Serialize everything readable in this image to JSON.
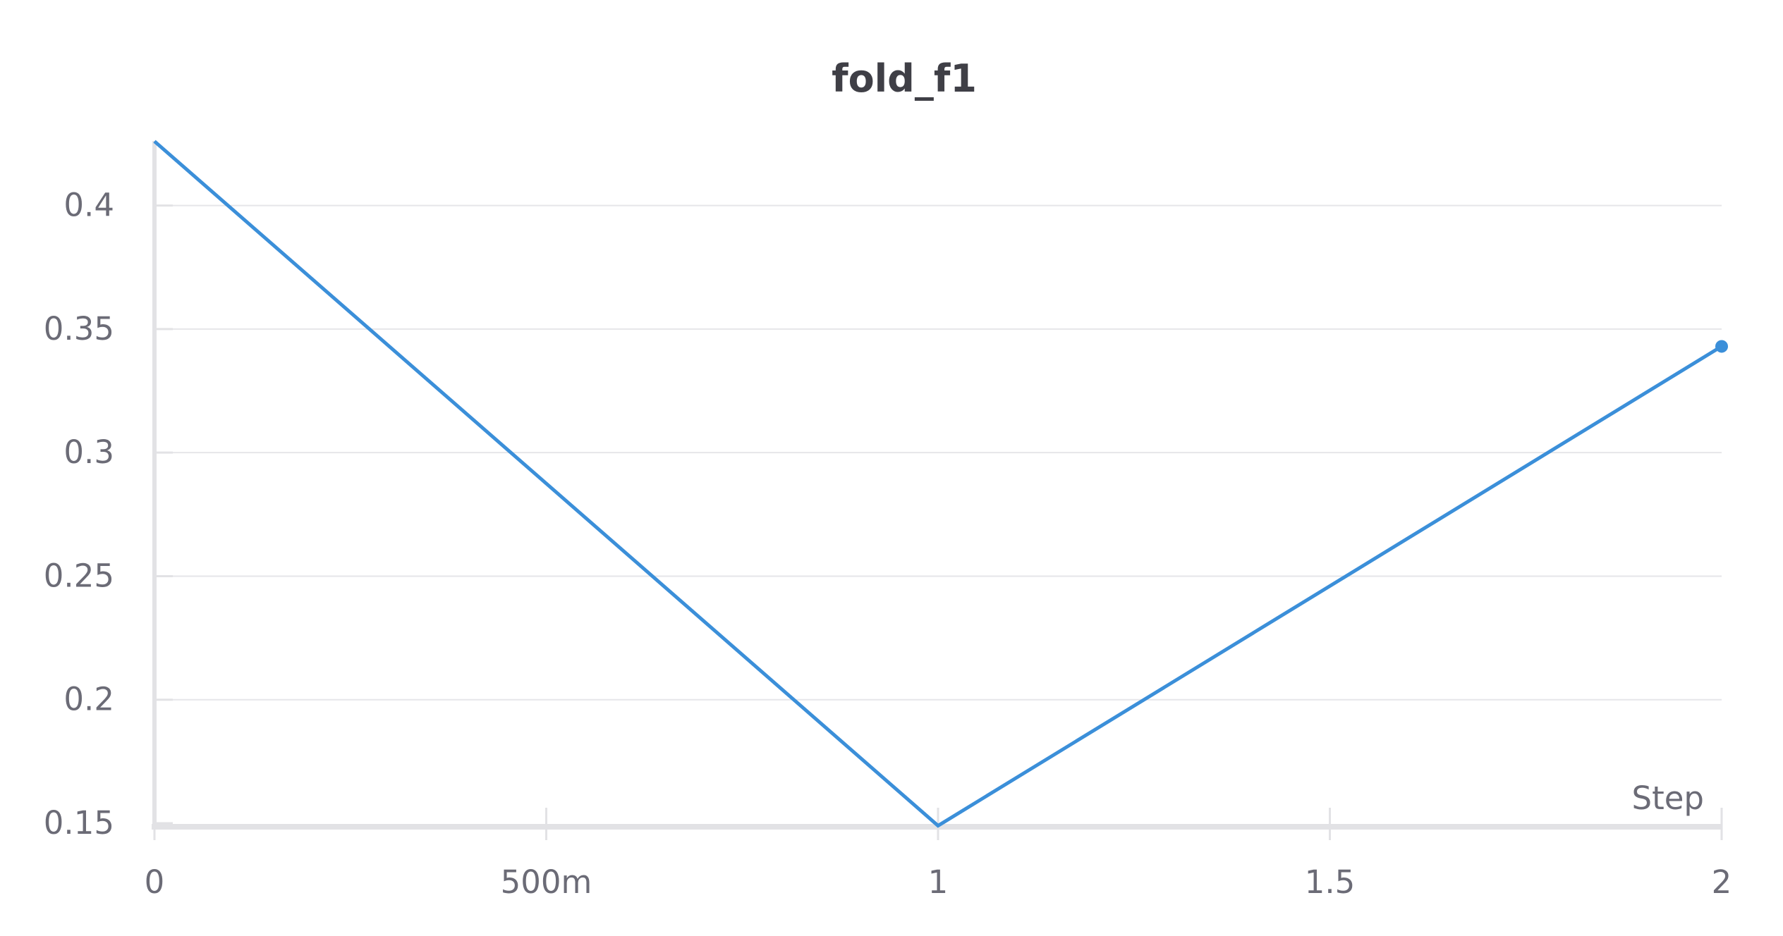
{
  "chart_data": {
    "type": "line",
    "title": "fold_f1",
    "xlabel": "Step",
    "ylabel": "",
    "xlim": [
      0,
      2
    ],
    "ylim": [
      0.15,
      0.425
    ],
    "x_ticks": [
      {
        "value": 0,
        "label": "0"
      },
      {
        "value": 0.5,
        "label": "500m"
      },
      {
        "value": 1,
        "label": "1"
      },
      {
        "value": 1.5,
        "label": "1.5"
      },
      {
        "value": 2,
        "label": "2"
      }
    ],
    "y_ticks": [
      {
        "value": 0.15,
        "label": "0.15"
      },
      {
        "value": 0.2,
        "label": "0.2"
      },
      {
        "value": 0.25,
        "label": "0.25"
      },
      {
        "value": 0.3,
        "label": "0.3"
      },
      {
        "value": 0.35,
        "label": "0.35"
      },
      {
        "value": 0.4,
        "label": "0.4"
      }
    ],
    "grid": true,
    "legend": "none",
    "series": [
      {
        "x": [
          0,
          1,
          2
        ],
        "values": [
          0.426,
          0.149,
          0.343
        ],
        "color": "#3b8fd9"
      }
    ]
  }
}
